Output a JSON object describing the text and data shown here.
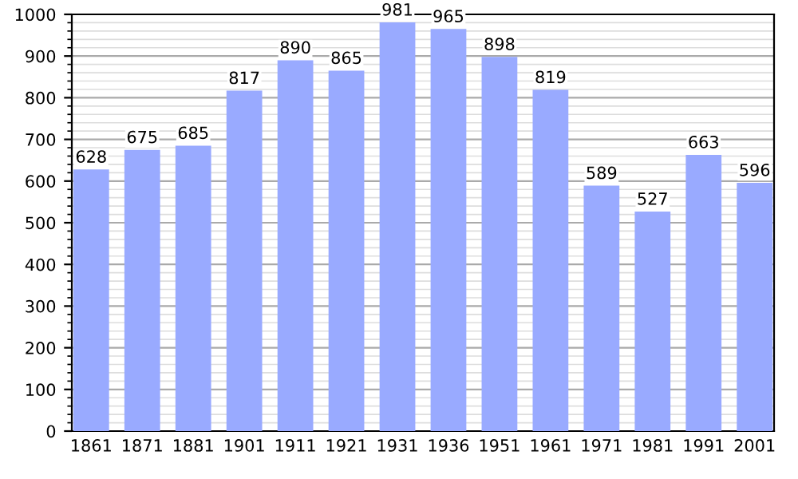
{
  "chart_data": {
    "type": "bar",
    "categories": [
      "1861",
      "1871",
      "1881",
      "1901",
      "1911",
      "1921",
      "1931",
      "1936",
      "1951",
      "1961",
      "1971",
      "1981",
      "1991",
      "2001"
    ],
    "values": [
      628,
      675,
      685,
      817,
      890,
      865,
      981,
      965,
      898,
      819,
      589,
      527,
      663,
      596
    ],
    "color": "#99aaff",
    "ylim": [
      0,
      1000
    ],
    "yticks": [
      0,
      100,
      200,
      300,
      400,
      500,
      600,
      700,
      800,
      900,
      1000
    ],
    "grid": "y",
    "data_labels": true
  }
}
